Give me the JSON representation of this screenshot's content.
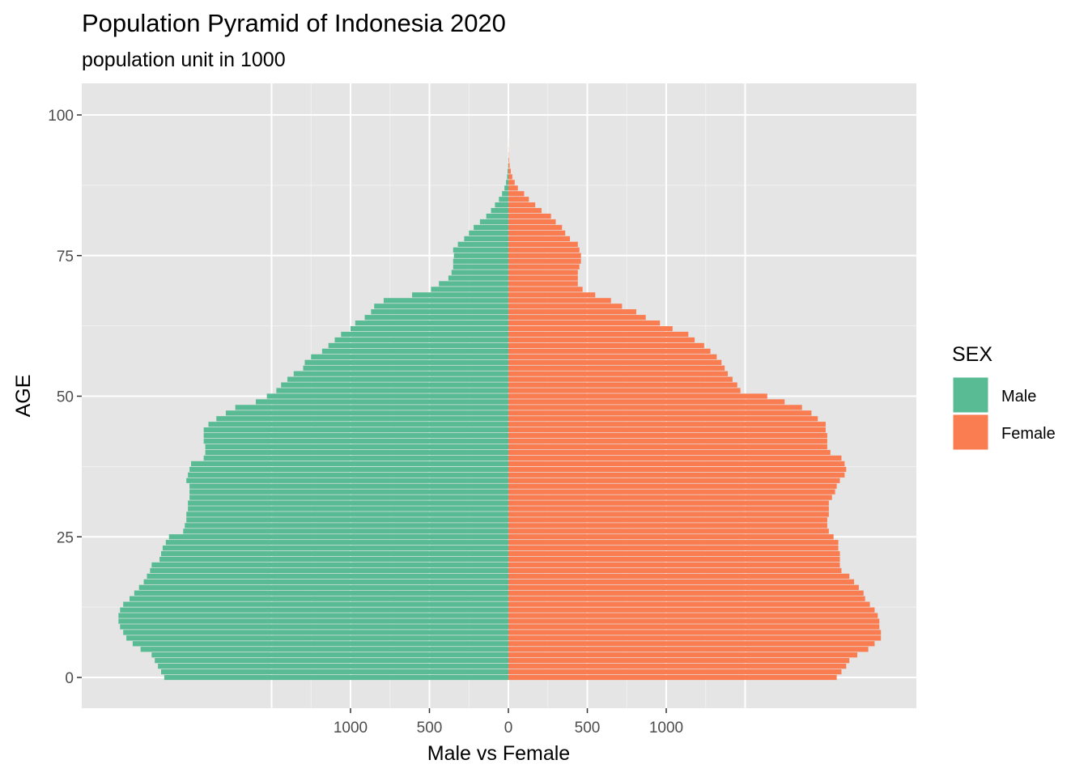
{
  "chart_data": {
    "type": "bar",
    "orientation": "horizontal-pyramid",
    "title": "Population Pyramid of Indonesia 2020",
    "subtitle": "population unit in 1000",
    "xlabel": "Male vs Female",
    "ylabel": "AGE",
    "xlim": [
      -1300,
      1300
    ],
    "ylim": [
      -4.5,
      104.5
    ],
    "x_ticks": [
      -1000,
      -500,
      0,
      500,
      1000
    ],
    "x_tick_labels": [
      "1000",
      "500",
      "0",
      "500",
      "1000"
    ],
    "y_ticks": [
      0,
      25,
      50,
      75,
      100
    ],
    "y_tick_labels": [
      "0",
      "25",
      "50",
      "75",
      "100"
    ],
    "grid": true,
    "legend": {
      "title": "SEX",
      "position": "right",
      "entries": [
        "Male",
        "Female"
      ]
    },
    "categories": [
      0,
      1,
      2,
      3,
      4,
      5,
      6,
      7,
      8,
      9,
      10,
      11,
      12,
      13,
      14,
      15,
      16,
      17,
      18,
      19,
      20,
      21,
      22,
      23,
      24,
      25,
      26,
      27,
      28,
      29,
      30,
      31,
      32,
      33,
      34,
      35,
      36,
      37,
      38,
      39,
      40,
      41,
      42,
      43,
      44,
      45,
      46,
      47,
      48,
      49,
      50,
      51,
      52,
      53,
      54,
      55,
      56,
      57,
      58,
      59,
      60,
      61,
      62,
      63,
      64,
      65,
      66,
      67,
      68,
      69,
      70,
      71,
      72,
      73,
      74,
      75,
      76,
      77,
      78,
      79,
      80,
      81,
      82,
      83,
      84,
      85,
      86,
      87,
      88,
      89,
      90,
      91,
      92,
      93,
      94,
      95,
      96,
      97,
      98,
      99,
      100
    ],
    "series": [
      {
        "name": "Male",
        "color": "#58BB94",
        "values": [
          2180,
          2200,
          2220,
          2240,
          2260,
          2330,
          2380,
          2420,
          2440,
          2460,
          2470,
          2470,
          2460,
          2440,
          2400,
          2370,
          2340,
          2310,
          2290,
          2270,
          2260,
          2210,
          2200,
          2190,
          2170,
          2150,
          2060,
          2050,
          2040,
          2040,
          2030,
          2030,
          2020,
          2020,
          2020,
          2040,
          2030,
          2020,
          2010,
          1930,
          1920,
          1920,
          1930,
          1930,
          1930,
          1900,
          1850,
          1790,
          1730,
          1600,
          1530,
          1470,
          1440,
          1400,
          1360,
          1300,
          1290,
          1250,
          1180,
          1140,
          1100,
          1060,
          1000,
          970,
          910,
          870,
          850,
          790,
          610,
          490,
          440,
          380,
          360,
          350,
          350,
          345,
          350,
          320,
          280,
          250,
          220,
          180,
          140,
          110,
          85,
          60,
          40,
          25,
          15,
          8,
          5,
          2,
          1,
          0.5,
          0.3,
          0.2,
          0.1,
          0.05,
          0.02,
          0.01,
          0.01
        ]
      },
      {
        "name": "Female",
        "color": "#FA7C51",
        "values": [
          2080,
          2110,
          2140,
          2160,
          2210,
          2280,
          2320,
          2360,
          2360,
          2350,
          2350,
          2340,
          2320,
          2290,
          2260,
          2250,
          2220,
          2190,
          2160,
          2110,
          2100,
          2100,
          2100,
          2090,
          2090,
          2060,
          2030,
          2020,
          2020,
          2030,
          2030,
          2030,
          2050,
          2070,
          2080,
          2100,
          2130,
          2140,
          2130,
          2110,
          2040,
          2020,
          2020,
          2020,
          2010,
          2010,
          1960,
          1920,
          1860,
          1750,
          1640,
          1470,
          1450,
          1420,
          1390,
          1370,
          1350,
          1320,
          1280,
          1240,
          1180,
          1140,
          1040,
          960,
          870,
          810,
          720,
          650,
          550,
          470,
          440,
          440,
          440,
          450,
          460,
          460,
          450,
          440,
          390,
          360,
          340,
          300,
          270,
          210,
          170,
          130,
          100,
          60,
          40,
          25,
          15,
          8,
          4,
          2,
          1,
          0.5,
          0.3,
          0.2,
          0.1,
          0.05,
          0.02
        ]
      }
    ]
  }
}
